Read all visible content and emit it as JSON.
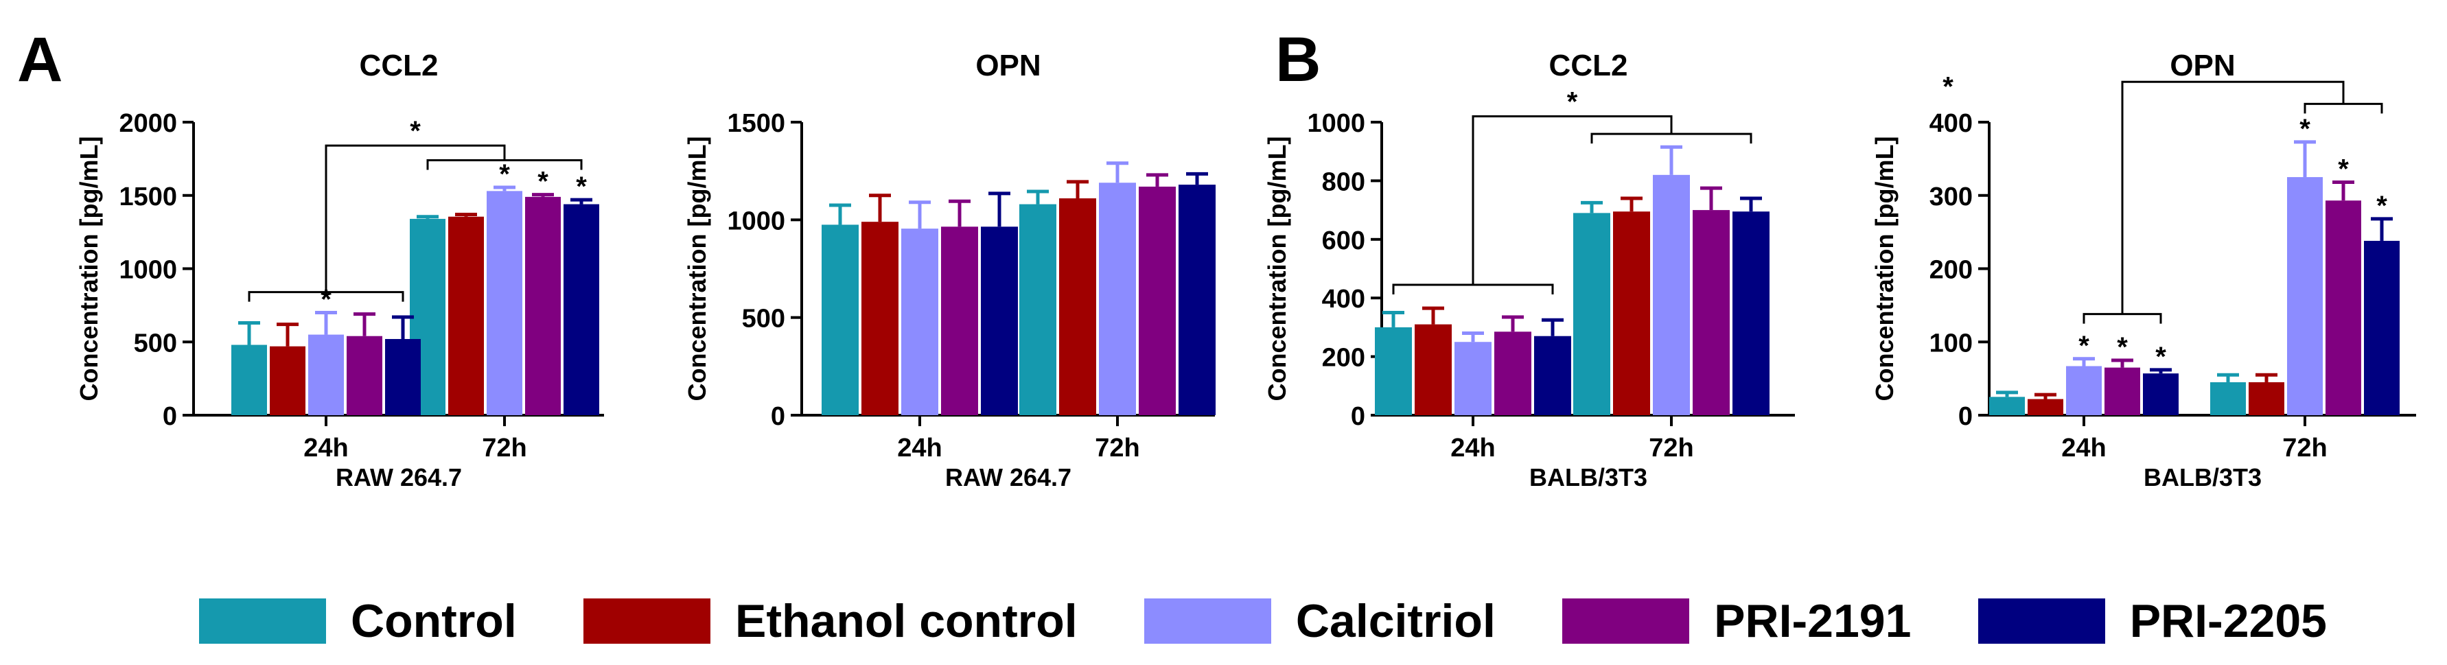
{
  "panel_letters": [
    "A",
    "B"
  ],
  "legend": [
    {
      "label": "Control",
      "color": "#1599AE"
    },
    {
      "label": "Ethanol control",
      "color": "#A00000"
    },
    {
      "label": "Calcitriol",
      "color": "#8C8CFF"
    },
    {
      "label": "PRI-2191",
      "color": "#800080"
    },
    {
      "label": "PRI-2205",
      "color": "#000080"
    }
  ],
  "chart_data": [
    {
      "type": "bar",
      "title": "CCL2",
      "ylabel": "Concentration [pg/mL]",
      "xlabel": "RAW 264.7",
      "categories": [
        "24h",
        "72h"
      ],
      "ylim": [
        0,
        2000
      ],
      "yticks": [
        0,
        500,
        1000,
        1500,
        2000
      ],
      "series": [
        {
          "name": "Control",
          "values": [
            480,
            1340
          ],
          "errors": [
            150,
            15
          ]
        },
        {
          "name": "Ethanol control",
          "values": [
            470,
            1355
          ],
          "errors": [
            150,
            15
          ]
        },
        {
          "name": "Calcitriol",
          "values": [
            550,
            1530
          ],
          "errors": [
            150,
            25
          ]
        },
        {
          "name": "PRI-2191",
          "values": [
            540,
            1490
          ],
          "errors": [
            150,
            15
          ]
        },
        {
          "name": "PRI-2205",
          "values": [
            520,
            1440
          ],
          "errors": [
            150,
            30
          ]
        }
      ],
      "significance": [
        [
          [
            0,
            2
          ],
          [
            1,
            2
          ],
          [
            1,
            3
          ],
          [
            1,
            4
          ]
        ],
        []
      ],
      "brackets": [
        {
          "from": [
            0,
            0
          ],
          "to": [
            0,
            4
          ],
          "y": 840
        },
        {
          "from": [
            1,
            0
          ],
          "to": [
            1,
            4
          ],
          "y": 1740
        },
        {
          "center_group_a": 0,
          "center_group_b": 1,
          "y": 1840,
          "label": "*"
        }
      ]
    },
    {
      "type": "bar",
      "title": "OPN",
      "ylabel": "Concentration [pg/mL]",
      "xlabel": "RAW 264.7",
      "categories": [
        "24h",
        "72h"
      ],
      "ylim": [
        0,
        1500
      ],
      "yticks": [
        0,
        500,
        1000,
        1500
      ],
      "series": [
        {
          "name": "Control",
          "values": [
            975,
            1080
          ],
          "errors": [
            100,
            65
          ]
        },
        {
          "name": "Ethanol control",
          "values": [
            990,
            1110
          ],
          "errors": [
            135,
            85
          ]
        },
        {
          "name": "Calcitriol",
          "values": [
            955,
            1190
          ],
          "errors": [
            135,
            100
          ]
        },
        {
          "name": "PRI-2191",
          "values": [
            965,
            1170
          ],
          "errors": [
            130,
            60
          ]
        },
        {
          "name": "PRI-2205",
          "values": [
            965,
            1180
          ],
          "errors": [
            170,
            55
          ]
        }
      ],
      "significance": [
        [],
        []
      ],
      "brackets": []
    },
    {
      "type": "bar",
      "title": "CCL2",
      "ylabel": "Concentration [pg/mL]",
      "xlabel": "BALB/3T3",
      "categories": [
        "24h",
        "72h"
      ],
      "ylim": [
        0,
        1000
      ],
      "yticks": [
        0,
        200,
        400,
        600,
        800,
        1000
      ],
      "series": [
        {
          "name": "Control",
          "values": [
            300,
            690
          ],
          "errors": [
            50,
            35
          ]
        },
        {
          "name": "Ethanol control",
          "values": [
            310,
            695
          ],
          "errors": [
            55,
            45
          ]
        },
        {
          "name": "Calcitriol",
          "values": [
            250,
            820
          ],
          "errors": [
            30,
            95
          ]
        },
        {
          "name": "PRI-2191",
          "values": [
            285,
            700
          ],
          "errors": [
            50,
            75
          ]
        },
        {
          "name": "PRI-2205",
          "values": [
            270,
            695
          ],
          "errors": [
            55,
            45
          ]
        }
      ],
      "significance": [
        [],
        []
      ],
      "brackets": [
        {
          "from": [
            0,
            0
          ],
          "to": [
            0,
            4
          ],
          "y": 445
        },
        {
          "from": [
            1,
            0
          ],
          "to": [
            1,
            4
          ],
          "y": 960
        },
        {
          "center_group_a": 0,
          "center_group_b": 1,
          "y": 1020,
          "label": "*"
        }
      ]
    },
    {
      "type": "bar",
      "title": "OPN",
      "ylabel": "Concentration [pg/mL]",
      "xlabel": "BALB/3T3",
      "categories": [
        "24h",
        "72h"
      ],
      "ylim": [
        0,
        400
      ],
      "yticks": [
        0,
        100,
        200,
        300,
        400
      ],
      "series": [
        {
          "name": "Control",
          "values": [
            25,
            45
          ],
          "errors": [
            6,
            10
          ]
        },
        {
          "name": "Ethanol control",
          "values": [
            22,
            45
          ],
          "errors": [
            6,
            10
          ]
        },
        {
          "name": "Calcitriol",
          "values": [
            67,
            325
          ],
          "errors": [
            10,
            48
          ]
        },
        {
          "name": "PRI-2191",
          "values": [
            65,
            293
          ],
          "errors": [
            10,
            25
          ]
        },
        {
          "name": "PRI-2205",
          "values": [
            57,
            238
          ],
          "errors": [
            5,
            30
          ]
        }
      ],
      "significance": [
        [
          [
            0,
            2
          ],
          [
            0,
            3
          ],
          [
            0,
            4
          ]
        ],
        [
          [
            1,
            2
          ],
          [
            1,
            3
          ],
          [
            1,
            4
          ]
        ]
      ],
      "brackets": [
        {
          "from": [
            0,
            2
          ],
          "to": [
            0,
            4
          ],
          "y": 138
        },
        {
          "from": [
            1,
            2
          ],
          "to": [
            1,
            4
          ],
          "y": 425
        },
        {
          "center_group_a": 0,
          "center_group_b": 1,
          "y": 455,
          "label": "*",
          "label_pos": "right"
        }
      ]
    }
  ]
}
